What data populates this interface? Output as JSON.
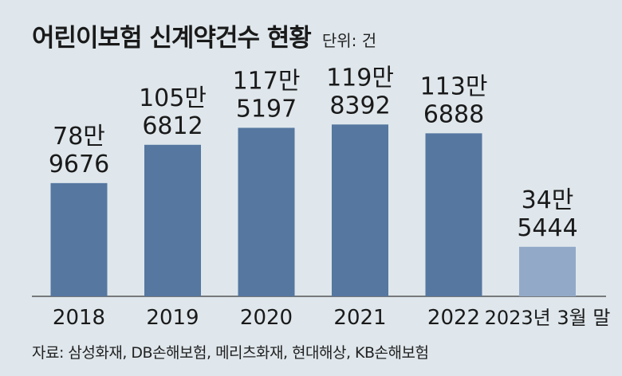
{
  "title": "어린이보험 신계약건수 현황",
  "unit": "단위: 건",
  "source": "자료: 삼성화재, DB손해보험, 메리츠화재, 현대해상, KB손해보험",
  "colors": {
    "bar": "#5577a0",
    "bar_highlight": "#92a9c8",
    "background": "#dfe7ec",
    "axis": "#555555"
  },
  "chart_data": {
    "type": "bar",
    "title": "어린이보험 신계약건수 현황",
    "unit": "단위: 건",
    "categories": [
      "2018",
      "2019",
      "2020",
      "2021",
      "2022",
      "2023년 3월 말"
    ],
    "values": [
      789676,
      1056812,
      1175197,
      1198392,
      1136888,
      345444
    ],
    "value_labels": [
      [
        "78만",
        "9676"
      ],
      [
        "105만",
        "6812"
      ],
      [
        "117만",
        "5197"
      ],
      [
        "119만",
        "8392"
      ],
      [
        "113만",
        "6888"
      ],
      [
        "34만",
        "5444"
      ]
    ],
    "highlight_index": 5,
    "grid": false,
    "legend": "none"
  }
}
